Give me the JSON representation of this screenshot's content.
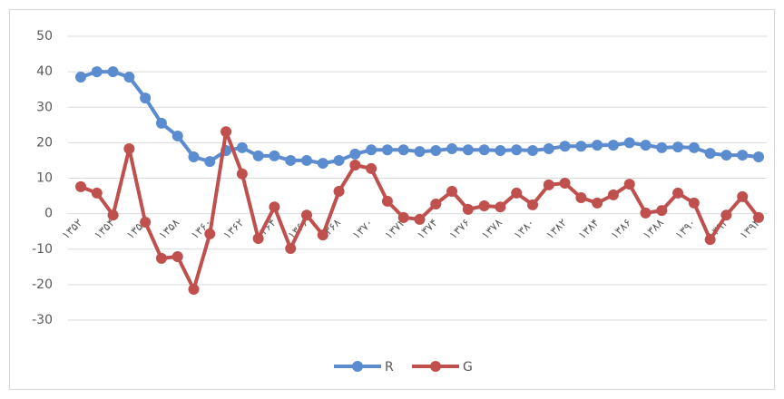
{
  "chart_data": {
    "type": "line",
    "categories": [
      "۱۳۵۲",
      null,
      "۱۳۵۴",
      null,
      "۱۳۵۶",
      null,
      "۱۳۵۸",
      null,
      "۱۳۶۰",
      null,
      "۱۳۶۲",
      null,
      "۱۳۶۴",
      null,
      "۱۳۶۶",
      null,
      "۱۳۶۸",
      null,
      "۱۳۷۰",
      null,
      "۱۳۷۲",
      null,
      "۱۳۷۴",
      null,
      "۱۳۷۶",
      null,
      "۱۳۷۸",
      null,
      "۱۳۸۰",
      null,
      "۱۳۸۲",
      null,
      "۱۳۸۴",
      null,
      "۱۳۸۶",
      null,
      "۱۳۸۸",
      null,
      "۱۳۹۰",
      null,
      "۱۳۹۲",
      null,
      "۱۳۹۴"
    ],
    "series": [
      {
        "name": "R",
        "color": "#5b8ccf",
        "values": [
          38.5,
          40,
          40,
          38.5,
          32.6,
          25.5,
          21.9,
          16,
          14.7,
          17.8,
          18.6,
          16.3,
          16.3,
          15,
          15,
          14.2,
          15,
          16.8,
          18,
          18,
          18,
          17.5,
          17.8,
          18.3,
          18,
          18,
          17.8,
          18,
          17.8,
          18.3,
          19,
          19,
          19.3,
          19.3,
          20,
          19.3,
          18.6,
          18.8,
          18.6,
          17,
          16.5,
          16.5,
          16
        ]
      },
      {
        "name": "G",
        "color": "#c0504d",
        "values": [
          7.6,
          5.8,
          -0.4,
          18.3,
          -2.4,
          -12.6,
          -12.1,
          -21.3,
          -5.7,
          23.1,
          11.2,
          -7,
          1.9,
          -9.8,
          -0.4,
          -6,
          6.3,
          13.7,
          12.7,
          3.5,
          -1.1,
          -1.6,
          2.7,
          6.3,
          1.2,
          2.2,
          1.9,
          5.8,
          2.5,
          8.1,
          8.6,
          4.5,
          3,
          5.3,
          8.3,
          0.2,
          0.9,
          5.8,
          3,
          -7.3,
          -0.4,
          4.8,
          -1.1
        ]
      }
    ],
    "ylim": [
      -40,
      50
    ],
    "yticks": [
      -30,
      -20,
      -10,
      0,
      10,
      20,
      30,
      40,
      50
    ],
    "grid": true,
    "legend": "bottom"
  }
}
